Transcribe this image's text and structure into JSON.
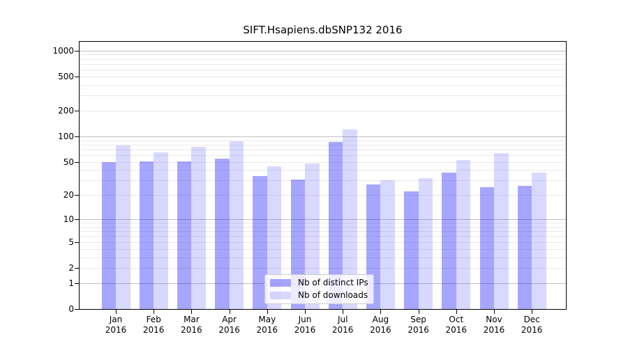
{
  "chart_data": {
    "type": "bar",
    "title": "SIFT.Hsapiens.dbSNP132 2016",
    "categories": [
      "Jan",
      "Feb",
      "Mar",
      "Apr",
      "May",
      "Jun",
      "Jul",
      "Aug",
      "Sep",
      "Oct",
      "Nov",
      "Dec"
    ],
    "year_label": "2016",
    "series": [
      {
        "name": "Nb of distinct IPs",
        "color": "rgba(0,0,255,0.35)",
        "values": [
          50,
          51,
          51,
          55,
          34,
          31,
          86,
          27,
          22,
          37,
          25,
          26
        ]
      },
      {
        "name": "Nb of downloads",
        "color": "rgba(0,0,255,0.15)",
        "values": [
          78,
          65,
          76,
          88,
          44,
          48,
          120,
          30,
          32,
          53,
          64,
          37
        ]
      }
    ],
    "y_scale": "log1p",
    "y_ticks": [
      0,
      1,
      2,
      5,
      10,
      20,
      50,
      100,
      200,
      500,
      1000
    ],
    "y_major_gridlines": [
      1,
      10,
      100,
      1000
    ],
    "ylim": [
      0,
      1230
    ],
    "grid": true,
    "legend_position": "bottom-center"
  }
}
